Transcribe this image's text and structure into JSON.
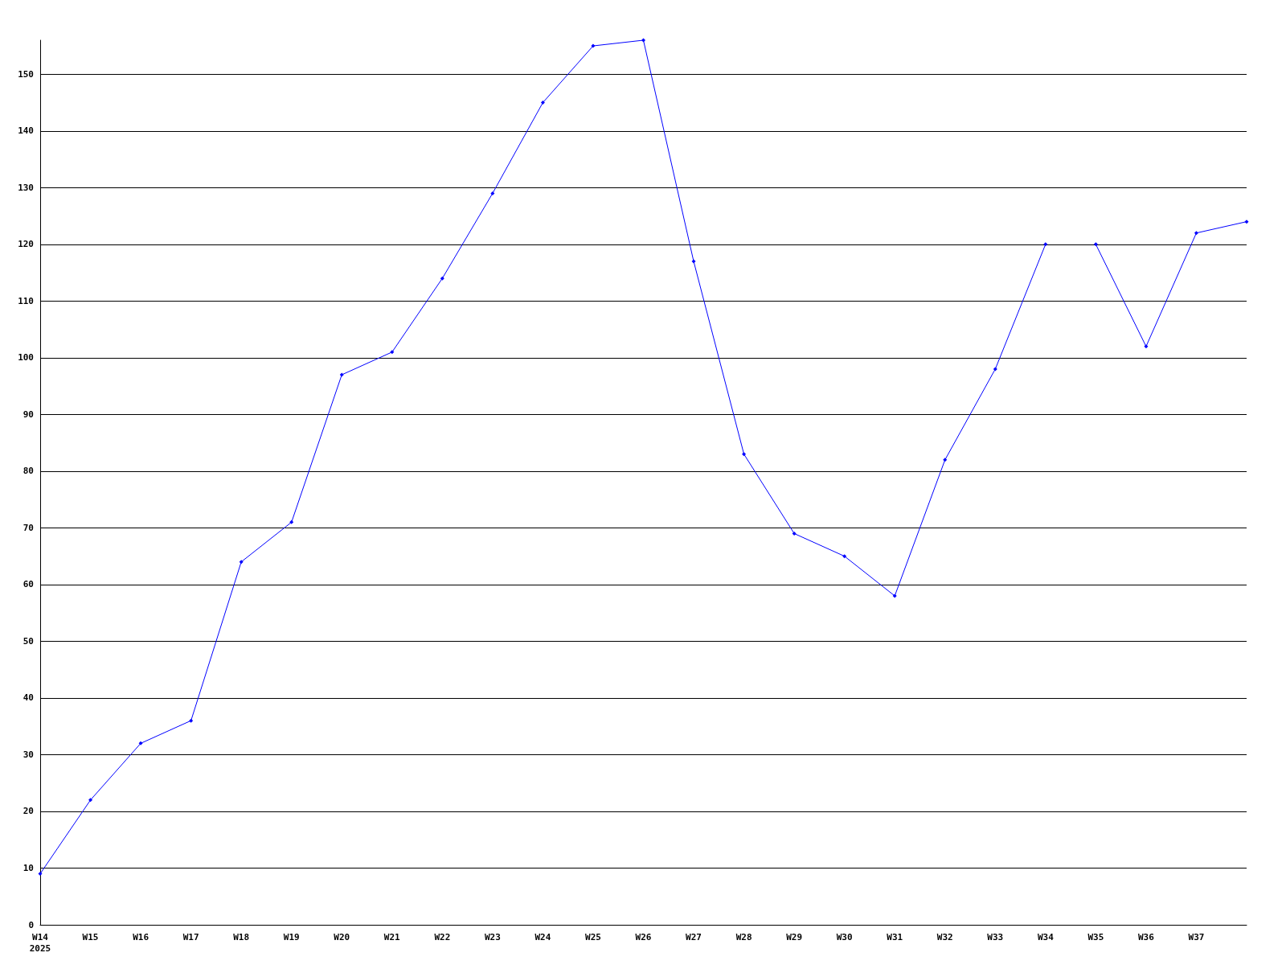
{
  "chart_data": {
    "type": "line",
    "categories": [
      "W14\n2025",
      "W15",
      "W16",
      "W17",
      "W18",
      "W19",
      "W20",
      "W21",
      "W22",
      "W23",
      "W24",
      "W25",
      "W26",
      "W27",
      "W28",
      "W29",
      "W30",
      "W31",
      "W32",
      "W33",
      "W34",
      "W35",
      "W36",
      "W37",
      null
    ],
    "series": [
      {
        "color": "#0000ff",
        "values": [
          9,
          22,
          32,
          36,
          64,
          71,
          97,
          101,
          114,
          129,
          145,
          155,
          156,
          117,
          83,
          69,
          65,
          58,
          82,
          98,
          120,
          null,
          null,
          null,
          null
        ]
      },
      {
        "color": "#0000ff",
        "values": [
          null,
          null,
          null,
          null,
          null,
          null,
          null,
          null,
          null,
          null,
          null,
          null,
          null,
          null,
          null,
          null,
          null,
          null,
          null,
          null,
          null,
          120,
          102,
          122,
          124
        ]
      }
    ],
    "ylim": [
      0,
      156
    ],
    "yticks": [
      0,
      10,
      20,
      30,
      40,
      50,
      60,
      70,
      80,
      90,
      100,
      110,
      120,
      130,
      140,
      150
    ],
    "grid": "y",
    "marker": "diamond",
    "line_style": "solid"
  }
}
